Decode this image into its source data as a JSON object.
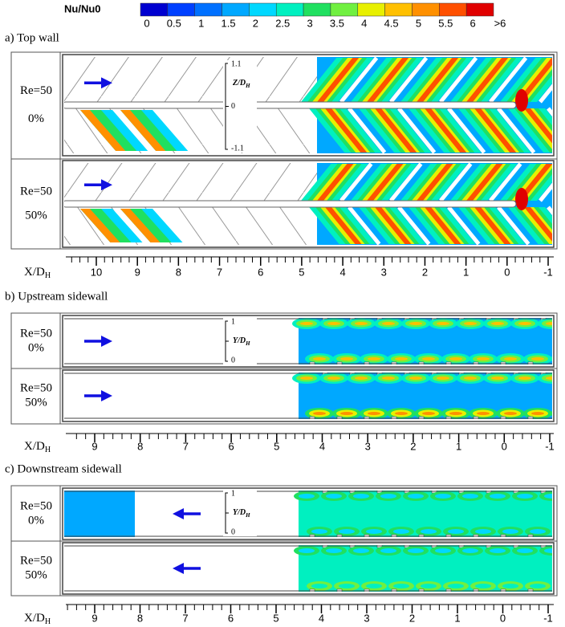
{
  "colorbar": {
    "title": "Nu/Nu0",
    "labels": [
      "0",
      "0.5",
      "1",
      "1.5",
      "2",
      "2.5",
      "3",
      "3.5",
      "4",
      "4.5",
      "5",
      "5.5",
      "6",
      ">6"
    ],
    "colors": [
      "#0000d0",
      "#0040ff",
      "#0070ff",
      "#00a8ff",
      "#00d8ff",
      "#00f0c0",
      "#20e060",
      "#70f040",
      "#e8f000",
      "#ffc000",
      "#ff9000",
      "#ff5000",
      "#e00000"
    ]
  },
  "panels": [
    {
      "title": "a) Top wall",
      "rows": [
        {
          "re": "Re=50",
          "ratio": "0%"
        },
        {
          "re": "Re=50",
          "ratio": "50%"
        }
      ],
      "inset_label": "Z/D",
      "inset_sub": "H",
      "inset_ticks": [
        "1.1",
        "0",
        "-1.1"
      ],
      "x_label": "X/D",
      "x_sub": "H",
      "x_ticks": [
        10,
        9,
        8,
        7,
        6,
        5,
        4,
        3,
        2,
        1,
        0,
        -1
      ]
    },
    {
      "title": "b) Upstream sidewall",
      "rows": [
        {
          "re": "Re=50",
          "ratio": "0%"
        },
        {
          "re": "Re=50",
          "ratio": "50%"
        }
      ],
      "inset_label": "Y/D",
      "inset_sub": "H",
      "inset_ticks": [
        "1",
        "0"
      ],
      "x_label": "X/D",
      "x_sub": "H",
      "x_ticks": [
        9,
        8,
        7,
        6,
        5,
        4,
        3,
        2,
        1,
        0,
        -1
      ]
    },
    {
      "title": "c) Downstream sidewall",
      "rows": [
        {
          "re": "Re=50",
          "ratio": "0%"
        },
        {
          "re": "Re=50",
          "ratio": "50%"
        }
      ],
      "inset_label": "Y/D",
      "inset_sub": "H",
      "inset_ticks": [
        "1",
        "0"
      ],
      "x_label": "X/D",
      "x_sub": "H",
      "x_ticks": [
        9,
        8,
        7,
        6,
        5,
        4,
        3,
        2,
        1,
        0,
        -1
      ]
    }
  ]
}
